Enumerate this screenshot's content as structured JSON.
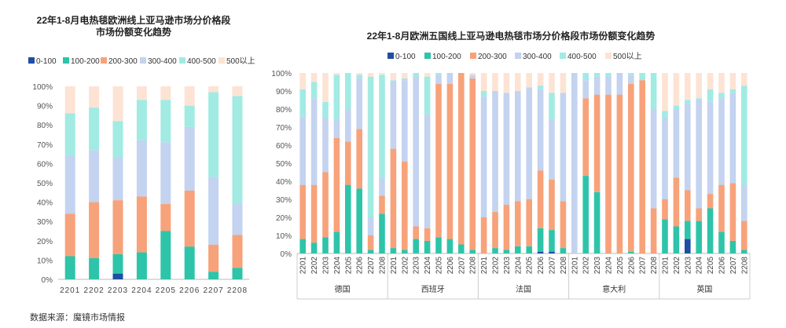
{
  "colors": {
    "0-100": "#1f4ea3",
    "100-200": "#2ec4a9",
    "200-300": "#f7a27a",
    "300-400": "#c3d3f0",
    "400-500": "#a1ebe3",
    "500以上": "#fde3d4"
  },
  "source": "数据来源：魔镜市场情报",
  "chart_data": [
    {
      "type": "bar",
      "stacked": true,
      "title": "22年1-8月电热毯欧洲线上亚马逊市场分价格段市场份额变化趋势",
      "title_lines": [
        "22年1-8月电热毯欧洲线上亚马逊市场分价格段",
        "市场份额变化趋势"
      ],
      "legend": [
        "0-100",
        "100-200",
        "200-300",
        "300-400",
        "400-500",
        "500以上"
      ],
      "categories": [
        "2201",
        "2202",
        "2203",
        "2204",
        "2205",
        "2206",
        "2207",
        "2208"
      ],
      "yticks": [
        "0%",
        "10%",
        "20%",
        "30%",
        "40%",
        "50%",
        "60%",
        "70%",
        "80%",
        "90%",
        "100%"
      ],
      "ylim": [
        0,
        100
      ],
      "series": [
        {
          "name": "0-100",
          "values": [
            0,
            0,
            3,
            0,
            0,
            0,
            0,
            0
          ]
        },
        {
          "name": "100-200",
          "values": [
            12,
            11,
            10,
            14,
            25,
            17,
            4,
            6
          ]
        },
        {
          "name": "200-300",
          "values": [
            22,
            29,
            28,
            29,
            14,
            29,
            14,
            17
          ]
        },
        {
          "name": "300-400",
          "values": [
            30,
            27,
            22,
            29,
            32,
            33,
            35,
            16
          ]
        },
        {
          "name": "400-500",
          "values": [
            22,
            22,
            19,
            21,
            22,
            11,
            44,
            56
          ]
        },
        {
          "name": "500以上",
          "values": [
            14,
            11,
            18,
            7,
            7,
            10,
            3,
            5
          ]
        }
      ]
    },
    {
      "type": "bar",
      "stacked": true,
      "title": "22年1-8月欧洲五国线上亚马逊电热毯市场分价格段市场份额变化趋势",
      "legend": [
        "0-100",
        "100-200",
        "200-300",
        "300-400",
        "400-500",
        "500以上"
      ],
      "groups": [
        "德国",
        "西班牙",
        "法国",
        "意大利",
        "英国"
      ],
      "categories": [
        "2201",
        "2202",
        "2203",
        "2204",
        "2205",
        "2206",
        "2207",
        "2208"
      ],
      "yticks": [
        "0%",
        "10%",
        "20%",
        "30%",
        "40%",
        "50%",
        "60%",
        "70%",
        "80%",
        "90%",
        "100%"
      ],
      "ylim": [
        0,
        100
      ],
      "bars": [
        {
          "group": "德国",
          "x": "2201",
          "values": [
            0,
            8,
            30,
            38,
            15,
            9
          ]
        },
        {
          "group": "德国",
          "x": "2202",
          "values": [
            0,
            6,
            32,
            48,
            9,
            5
          ]
        },
        {
          "group": "德国",
          "x": "2203",
          "values": [
            0,
            9,
            36,
            30,
            9,
            16
          ]
        },
        {
          "group": "德国",
          "x": "2204",
          "values": [
            0,
            12,
            52,
            10,
            25,
            1
          ]
        },
        {
          "group": "德国",
          "x": "2205",
          "values": [
            0,
            38,
            24,
            18,
            20,
            0
          ]
        },
        {
          "group": "德国",
          "x": "2206",
          "values": [
            0,
            36,
            33,
            28,
            2,
            1
          ]
        },
        {
          "group": "德国",
          "x": "2207",
          "values": [
            0,
            2,
            8,
            10,
            78,
            2
          ]
        },
        {
          "group": "德国",
          "x": "2208",
          "values": [
            0,
            22,
            10,
            10,
            57,
            1
          ]
        },
        {
          "group": "西班牙",
          "x": "2201",
          "values": [
            0,
            3,
            55,
            37,
            1,
            4
          ]
        },
        {
          "group": "西班牙",
          "x": "2202",
          "values": [
            0,
            2,
            49,
            45,
            1,
            3
          ]
        },
        {
          "group": "西班牙",
          "x": "2203",
          "values": [
            0,
            8,
            7,
            83,
            2,
            0
          ]
        },
        {
          "group": "西班牙",
          "x": "2204",
          "values": [
            0,
            7,
            7,
            63,
            21,
            2
          ]
        },
        {
          "group": "西班牙",
          "x": "2205",
          "values": [
            0,
            9,
            85,
            5,
            1,
            0
          ]
        },
        {
          "group": "西班牙",
          "x": "2206",
          "values": [
            0,
            8,
            86,
            6,
            0,
            0
          ]
        },
        {
          "group": "西班牙",
          "x": "2207",
          "values": [
            0,
            5,
            95,
            0,
            0,
            0
          ]
        },
        {
          "group": "西班牙",
          "x": "2208",
          "values": [
            0,
            2,
            95,
            2,
            0,
            1
          ]
        },
        {
          "group": "法国",
          "x": "2201",
          "values": [
            0,
            0,
            20,
            67,
            3,
            10
          ]
        },
        {
          "group": "法国",
          "x": "2202",
          "values": [
            0,
            3,
            20,
            67,
            0,
            10
          ]
        },
        {
          "group": "法国",
          "x": "2203",
          "values": [
            0,
            2,
            25,
            62,
            0,
            11
          ]
        },
        {
          "group": "法国",
          "x": "2204",
          "values": [
            0,
            4,
            25,
            61,
            0,
            10
          ]
        },
        {
          "group": "法国",
          "x": "2205",
          "values": [
            0,
            4,
            26,
            62,
            0,
            8
          ]
        },
        {
          "group": "法国",
          "x": "2206",
          "values": [
            1,
            13,
            32,
            45,
            2,
            7
          ]
        },
        {
          "group": "法国",
          "x": "2207",
          "values": [
            1,
            12,
            28,
            33,
            15,
            11
          ]
        },
        {
          "group": "法国",
          "x": "2208",
          "values": [
            0,
            3,
            26,
            60,
            0,
            11
          ]
        },
        {
          "group": "意大利",
          "x": "2201",
          "values": [
            0,
            0,
            0,
            100,
            0,
            0
          ]
        },
        {
          "group": "意大利",
          "x": "2202",
          "values": [
            0,
            43,
            43,
            10,
            4,
            0
          ]
        },
        {
          "group": "意大利",
          "x": "2203",
          "values": [
            0,
            34,
            54,
            10,
            2,
            0
          ]
        },
        {
          "group": "意大利",
          "x": "2204",
          "values": [
            0,
            0,
            88,
            10,
            2,
            0
          ]
        },
        {
          "group": "意大利",
          "x": "2205",
          "values": [
            0,
            0,
            88,
            12,
            0,
            0
          ]
        },
        {
          "group": "意大利",
          "x": "2206",
          "values": [
            0,
            1,
            93,
            5,
            1,
            0
          ]
        },
        {
          "group": "意大利",
          "x": "2207",
          "values": [
            0,
            0,
            96,
            0,
            4,
            0
          ]
        },
        {
          "group": "意大利",
          "x": "2208",
          "values": [
            0,
            0,
            25,
            55,
            20,
            0
          ]
        },
        {
          "group": "英国",
          "x": "2201",
          "values": [
            0,
            19,
            11,
            45,
            4,
            21
          ]
        },
        {
          "group": "英国",
          "x": "2202",
          "values": [
            0,
            15,
            27,
            38,
            2,
            18
          ]
        },
        {
          "group": "英国",
          "x": "2203",
          "values": [
            8,
            10,
            17,
            48,
            2,
            15
          ]
        },
        {
          "group": "英国",
          "x": "2204",
          "values": [
            0,
            18,
            7,
            60,
            1,
            14
          ]
        },
        {
          "group": "英国",
          "x": "2205",
          "values": [
            0,
            25,
            8,
            51,
            7,
            9
          ]
        },
        {
          "group": "英国",
          "x": "2206",
          "values": [
            0,
            12,
            26,
            48,
            3,
            11
          ]
        },
        {
          "group": "英国",
          "x": "2207",
          "values": [
            0,
            7,
            32,
            50,
            2,
            9
          ]
        },
        {
          "group": "英国",
          "x": "2208",
          "values": [
            0,
            2,
            16,
            20,
            55,
            7
          ]
        }
      ]
    }
  ]
}
